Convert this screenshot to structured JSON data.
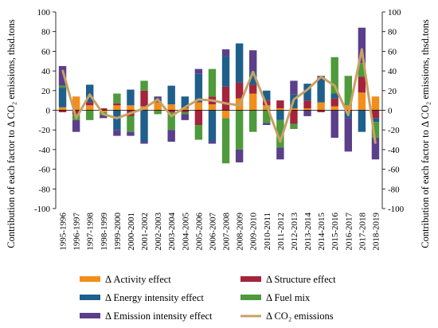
{
  "chart_data": {
    "type": "bar",
    "stacked": true,
    "categories": [
      "1995-1996",
      "1996-1997",
      "1997-1998",
      "1998-1999",
      "1999-2000",
      "2000-2001",
      "2001-2002",
      "2002-2003",
      "2003-2004",
      "2004-2005",
      "2005-2006",
      "2006-2007",
      "2007-2008",
      "2008-2009",
      "2009-2010",
      "2010-2011",
      "2011-2012",
      "2012-2013",
      "2013-2014",
      "2014-2015",
      "2015-2016",
      "2016-2017",
      "2017-2018",
      "2018-2019"
    ],
    "ylabel_left": "Contribution of each factor to Δ CO₂ emissions, thsd.tons",
    "ylabel_right": "Contribution of each factor to Δ CO₂ emissions, thsd.tons",
    "ylim": [
      -100,
      100
    ],
    "yticks": [
      -100,
      -80,
      -60,
      -40,
      -20,
      0,
      20,
      40,
      60,
      80,
      100
    ],
    "grid": false,
    "legend_position": "bottom",
    "series": [
      {
        "name": "Δ Activity effect",
        "color": "#f28e1c",
        "values": [
          3,
          14,
          5,
          -2,
          5,
          5,
          4,
          8,
          6,
          2,
          8,
          6,
          -8,
          12,
          17,
          5,
          2,
          2,
          2,
          8,
          4,
          5,
          18,
          14
        ]
      },
      {
        "name": "Δ Structure effect",
        "color": "#a3243b",
        "values": [
          -2,
          -4,
          3,
          2,
          2,
          -6,
          16,
          2,
          -2,
          -2,
          -15,
          8,
          24,
          16,
          9,
          5,
          8,
          -14,
          8,
          -2,
          8,
          -2,
          16,
          -8
        ]
      },
      {
        "name": "Δ Energy intensity effect",
        "color": "#1f5f8b",
        "values": [
          20,
          0,
          18,
          0,
          -20,
          16,
          -32,
          2,
          19,
          12,
          29,
          -32,
          31,
          40,
          13,
          10,
          -10,
          14,
          17,
          25,
          5,
          -6,
          -22,
          -4
        ]
      },
      {
        "name": "Δ Fuel mix",
        "color": "#4e9a3c",
        "values": [
          2,
          -6,
          -10,
          -3,
          10,
          -16,
          10,
          -4,
          -18,
          -2,
          -15,
          28,
          -46,
          -40,
          -22,
          -13,
          -28,
          -5,
          0,
          0,
          37,
          30,
          14,
          -16
        ]
      },
      {
        "name": "Δ Emission intensity effect",
        "color": "#5b3f8a",
        "values": [
          20,
          -12,
          0,
          -3,
          -6,
          -4,
          -2,
          2,
          -12,
          -6,
          5,
          -2,
          7,
          -13,
          22,
          -2,
          -12,
          14,
          -6,
          2,
          -28,
          -34,
          36,
          -22
        ]
      }
    ],
    "line": {
      "name": "Δ CO₂ emissions",
      "color": "#c8a165",
      "values": [
        41,
        -8,
        16,
        -4,
        -8,
        -3,
        2,
        11,
        -6,
        3,
        11,
        10,
        7,
        5,
        39,
        5,
        -32,
        11,
        21,
        34,
        25,
        -5,
        62,
        -34
      ]
    }
  }
}
